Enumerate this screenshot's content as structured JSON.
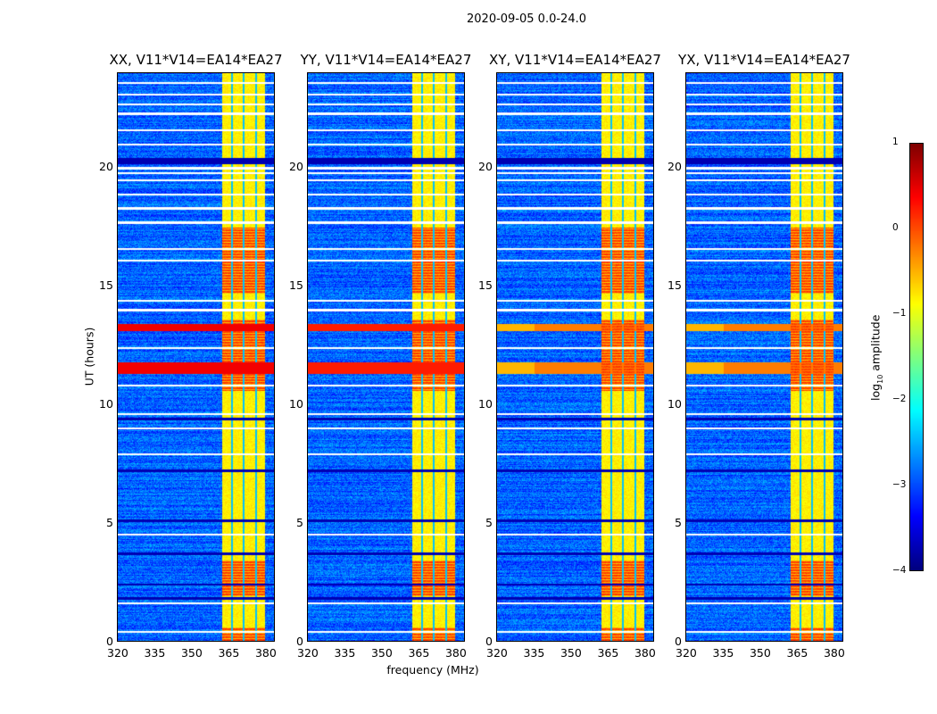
{
  "chart_data": {
    "type": "heatmap",
    "title": "2020-09-05 0.0-24.0",
    "xlabel": "frequency (MHz)",
    "ylabel": "UT (hours)",
    "xlim": [
      320,
      384
    ],
    "ylim": [
      0,
      24
    ],
    "xticks": [
      320,
      335,
      350,
      365,
      380
    ],
    "yticks": [
      0,
      5,
      10,
      15,
      20
    ],
    "panels": [
      {
        "title": "XX, V11*V14=EA14*EA27",
        "strong_row_level": 0.4
      },
      {
        "title": "YY, V11*V14=EA14*EA27",
        "strong_row_level": 0.2
      },
      {
        "title": "XY, V11*V14=EA14*EA27",
        "strong_row_level": -0.3
      },
      {
        "title": "YX, V11*V14=EA14*EA27",
        "strong_row_level": -0.3
      }
    ],
    "colorbar": {
      "label": "log10 amplitude",
      "label_main": "log",
      "label_sub": "10",
      "label_rest": " amplitude",
      "range": [
        -4,
        1
      ],
      "ticks": [
        "1",
        "0",
        "−1",
        "−2",
        "−3",
        "−4"
      ],
      "colormap": "jet"
    },
    "features": {
      "background_level": -3.1,
      "rfi_band_mhz": [
        362.5,
        380
      ],
      "rfi_band_level": -0.9,
      "rfi_channel_gaps_mhz": [
        366.5,
        371.5,
        376.5
      ],
      "high_rfi_hours": [
        [
          1.9,
          3.4
        ],
        [
          10.6,
          13.6
        ],
        [
          14.7,
          17.5
        ],
        [
          0,
          0.6
        ]
      ],
      "strong_rows_hours": [
        [
          11.3,
          11.8
        ],
        [
          13.1,
          13.4
        ]
      ],
      "flagged_rows_hours": [
        0.4,
        1.6,
        4.5,
        7.9,
        9.0,
        9.6,
        10.8,
        12.4,
        14.0,
        14.4,
        16.1,
        16.6,
        17.7,
        18.3,
        18.9,
        19.5,
        19.8,
        20.0,
        21.0,
        21.6,
        22.3,
        22.7,
        23.1,
        23.6
      ],
      "dark_rows_hours": [
        1.8,
        2.4,
        3.7,
        5.1,
        7.2,
        9.4,
        20.3
      ]
    }
  }
}
